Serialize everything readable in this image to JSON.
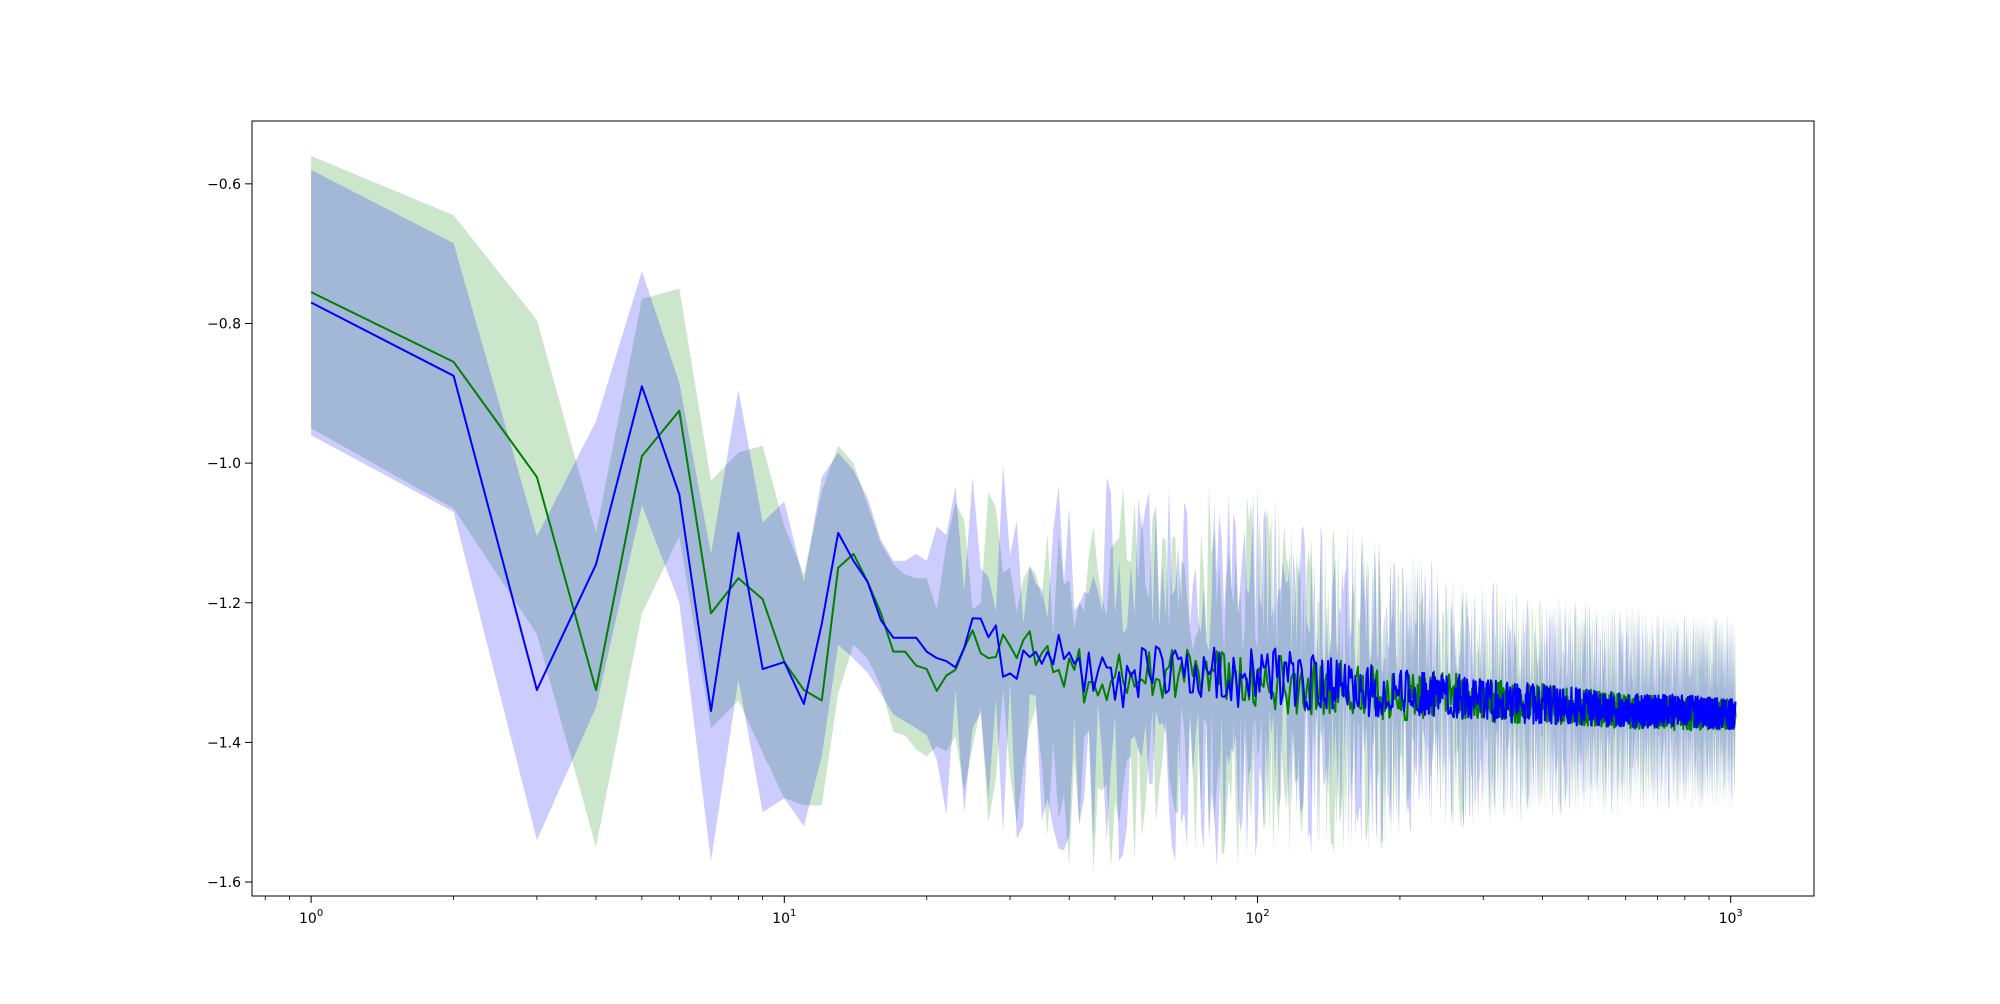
{
  "chart_data": {
    "type": "line",
    "title": "",
    "xlabel": "",
    "ylabel": "",
    "xscale": "log",
    "xlim": [
      0.75,
      1500
    ],
    "ylim": [
      -1.62,
      -0.51
    ],
    "grid": false,
    "legend": "none",
    "x_ticks": [
      {
        "value": 1,
        "base": "10",
        "exp": "0"
      },
      {
        "value": 10,
        "base": "10",
        "exp": "1"
      },
      {
        "value": 100,
        "base": "10",
        "exp": "2"
      },
      {
        "value": 1000,
        "base": "10",
        "exp": "3"
      }
    ],
    "y_ticks": [
      {
        "value": -0.6,
        "label": "−0.6"
      },
      {
        "value": -0.8,
        "label": "−0.8"
      },
      {
        "value": -1.0,
        "label": "−1.0"
      },
      {
        "value": -1.2,
        "label": "−1.2"
      },
      {
        "value": -1.4,
        "label": "−1.4"
      },
      {
        "value": -1.6,
        "label": "−1.6"
      }
    ],
    "series": [
      {
        "color": "#008000",
        "band_color": "#008000",
        "band_opacity": 0.2,
        "x": [
          1,
          2,
          3,
          4,
          5,
          6,
          7,
          8,
          9,
          10,
          11,
          12,
          13,
          14,
          15,
          16,
          17,
          18,
          19,
          20,
          22,
          24,
          26,
          28,
          30,
          33,
          36,
          40,
          45,
          50,
          55,
          60,
          70,
          80,
          90,
          100,
          120,
          150,
          200,
          250,
          300,
          400,
          500,
          600,
          800,
          1024
        ],
        "y": [
          -0.755,
          -0.855,
          -1.02,
          -1.325,
          -0.99,
          -0.925,
          -1.215,
          -1.165,
          -1.195,
          -1.285,
          -1.325,
          -1.34,
          -1.15,
          -1.13,
          -1.17,
          -1.215,
          -1.27,
          -1.27,
          -1.29,
          -1.295,
          -1.32,
          -1.285,
          -1.27,
          -1.26,
          -1.28,
          -1.26,
          -1.28,
          -1.3,
          -1.31,
          -1.3,
          -1.31,
          -1.3,
          -1.305,
          -1.3,
          -1.31,
          -1.31,
          -1.32,
          -1.32,
          -1.335,
          -1.33,
          -1.34,
          -1.345,
          -1.35,
          -1.355,
          -1.36,
          -1.36
        ],
        "y_upper": [
          -0.56,
          -0.645,
          -0.795,
          -1.1,
          -0.765,
          -0.75,
          -1.025,
          -0.985,
          -0.975,
          -1.09,
          -1.16,
          -1.04,
          -0.975,
          -1.0,
          -1.06,
          -1.115,
          -1.145,
          -1.16,
          -1.165,
          -1.165,
          -1.16,
          -1.14,
          -1.13,
          -1.12,
          -1.13,
          -1.14,
          -1.15,
          -1.15,
          -1.14,
          -1.15,
          -1.16,
          -1.15,
          -1.15,
          -1.15,
          -1.16,
          -1.15,
          -1.17,
          -1.2,
          -1.23,
          -1.24,
          -1.26,
          -1.27,
          -1.27,
          -1.275,
          -1.28,
          -1.28
        ],
        "y_lower": [
          -0.95,
          -1.065,
          -1.245,
          -1.55,
          -1.215,
          -1.105,
          -1.38,
          -1.34,
          -1.415,
          -1.48,
          -1.49,
          -1.49,
          -1.33,
          -1.26,
          -1.28,
          -1.32,
          -1.385,
          -1.39,
          -1.41,
          -1.42,
          -1.455,
          -1.43,
          -1.42,
          -1.42,
          -1.43,
          -1.44,
          -1.44,
          -1.46,
          -1.47,
          -1.46,
          -1.47,
          -1.47,
          -1.46,
          -1.47,
          -1.47,
          -1.46,
          -1.45,
          -1.45,
          -1.44,
          -1.43,
          -1.43,
          -1.425,
          -1.43,
          -1.43,
          -1.43,
          -1.43
        ]
      },
      {
        "color": "#0000ff",
        "band_color": "#0000ff",
        "band_opacity": 0.2,
        "x": [
          1,
          2,
          3,
          4,
          5,
          6,
          7,
          8,
          9,
          10,
          11,
          12,
          13,
          14,
          15,
          16,
          17,
          18,
          19,
          20,
          22,
          24,
          26,
          28,
          30,
          33,
          36,
          40,
          45,
          50,
          55,
          60,
          70,
          80,
          90,
          100,
          120,
          150,
          200,
          250,
          300,
          400,
          500,
          600,
          800,
          1024
        ],
        "y": [
          -0.77,
          -0.875,
          -1.325,
          -1.145,
          -0.89,
          -1.045,
          -1.355,
          -1.1,
          -1.295,
          -1.285,
          -1.345,
          -1.23,
          -1.1,
          -1.14,
          -1.17,
          -1.225,
          -1.25,
          -1.25,
          -1.25,
          -1.27,
          -1.29,
          -1.265,
          -1.255,
          -1.265,
          -1.28,
          -1.27,
          -1.27,
          -1.29,
          -1.3,
          -1.32,
          -1.3,
          -1.3,
          -1.29,
          -1.3,
          -1.31,
          -1.3,
          -1.31,
          -1.32,
          -1.33,
          -1.33,
          -1.34,
          -1.345,
          -1.35,
          -1.355,
          -1.355,
          -1.36
        ],
        "y_upper": [
          -0.58,
          -0.685,
          -1.105,
          -0.94,
          -0.725,
          -0.885,
          -1.13,
          -0.895,
          -1.085,
          -1.055,
          -1.17,
          -1.02,
          -0.985,
          -1.01,
          -1.05,
          -1.11,
          -1.14,
          -1.14,
          -1.13,
          -1.14,
          -1.15,
          -1.12,
          -1.09,
          -1.1,
          -1.12,
          -1.12,
          -1.13,
          -1.13,
          -1.13,
          -1.14,
          -1.15,
          -1.15,
          -1.14,
          -1.15,
          -1.16,
          -1.15,
          -1.17,
          -1.2,
          -1.23,
          -1.24,
          -1.26,
          -1.27,
          -1.27,
          -1.275,
          -1.28,
          -1.28
        ],
        "y_lower": [
          -0.96,
          -1.07,
          -1.54,
          -1.35,
          -1.06,
          -1.2,
          -1.57,
          -1.31,
          -1.5,
          -1.48,
          -1.52,
          -1.42,
          -1.26,
          -1.28,
          -1.3,
          -1.33,
          -1.36,
          -1.37,
          -1.38,
          -1.39,
          -1.41,
          -1.41,
          -1.42,
          -1.42,
          -1.42,
          -1.43,
          -1.44,
          -1.45,
          -1.46,
          -1.47,
          -1.47,
          -1.47,
          -1.46,
          -1.47,
          -1.47,
          -1.46,
          -1.45,
          -1.45,
          -1.44,
          -1.43,
          -1.43,
          -1.425,
          -1.43,
          -1.43,
          -1.43,
          -1.43
        ]
      }
    ]
  }
}
